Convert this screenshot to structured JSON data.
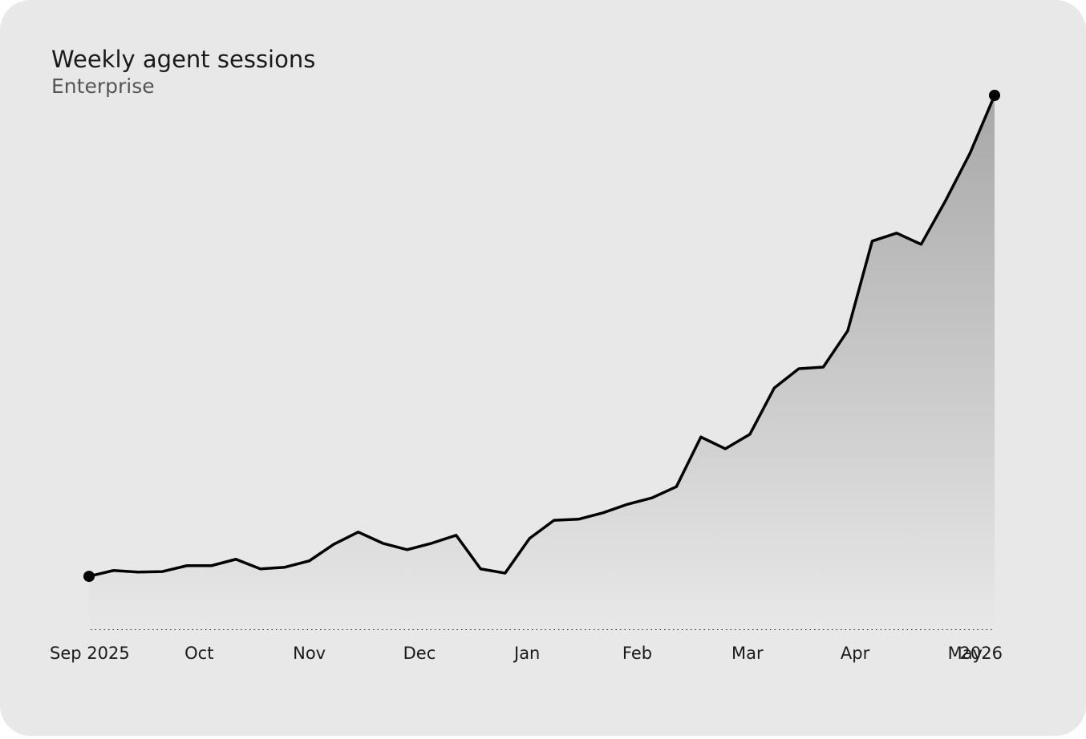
{
  "chart_data": {
    "type": "area",
    "title": "Weekly agent sessions",
    "subtitle": "Enterprise",
    "x": [
      0,
      1,
      2,
      3,
      4,
      5,
      6,
      7,
      8,
      9,
      10,
      11,
      12,
      13,
      14,
      15,
      16,
      17,
      18,
      19,
      20,
      21,
      22,
      23,
      24,
      25,
      26,
      27,
      28,
      29,
      30,
      31,
      32,
      33,
      34,
      35,
      36,
      37
    ],
    "series": [
      {
        "name": "Enterprise",
        "color": "#000000",
        "values": [
          9.9,
          11.0,
          10.7,
          10.8,
          11.9,
          11.9,
          13.1,
          11.3,
          11.6,
          12.8,
          15.9,
          18.2,
          16.1,
          14.9,
          16.1,
          17.6,
          11.3,
          10.5,
          17.0,
          20.4,
          20.6,
          21.8,
          23.4,
          24.6,
          26.7,
          36.0,
          33.8,
          36.5,
          45.2,
          48.8,
          49.1,
          55.9,
          72.7,
          74.2,
          72.1,
          80.3,
          89.2,
          100
        ]
      }
    ],
    "xlim": [
      0,
      37
    ],
    "xticks": [
      {
        "value": 0,
        "label": "Sep 2025"
      },
      {
        "value": 4.5,
        "label": "Oct"
      },
      {
        "value": 9,
        "label": "Nov"
      },
      {
        "value": 13.5,
        "label": "Dec"
      },
      {
        "value": 17.9,
        "label": "Jan"
      },
      {
        "value": 22.4,
        "label": "Feb"
      },
      {
        "value": 26.9,
        "label": "Mar"
      },
      {
        "value": 31.3,
        "label": "Apr"
      },
      {
        "value": 35.8,
        "label": "May"
      }
    ],
    "x_year_label": "2026",
    "ylim": [
      0,
      100
    ]
  }
}
